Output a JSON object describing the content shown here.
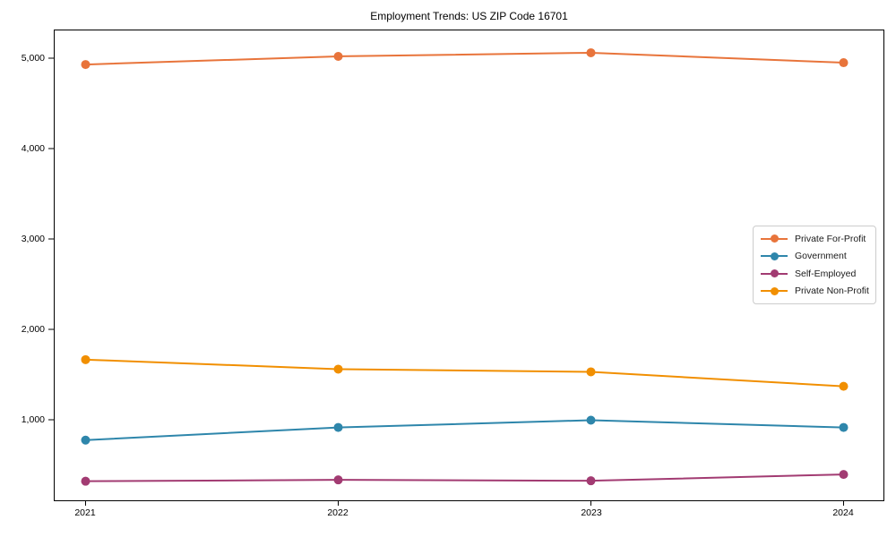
{
  "chart_data": {
    "type": "line",
    "title": "Employment Trends: US ZIP Code 16701",
    "x": [
      2021,
      2022,
      2023,
      2024
    ],
    "xtick_labels": [
      "2021",
      "2022",
      "2023",
      "2024"
    ],
    "yticks": [
      1000,
      2000,
      3000,
      4000,
      5000
    ],
    "ytick_labels": [
      "1,000",
      "2,000",
      "3,000",
      "4,000",
      "5,000"
    ],
    "ylim": [
      85,
      5320
    ],
    "grid": false,
    "legend_position": "center-right",
    "marker": "circle",
    "series": [
      {
        "name": "Private For-Profit",
        "color": "#E8743B",
        "values": [
          4930,
          5020,
          5060,
          4950
        ]
      },
      {
        "name": "Government",
        "color": "#2E86AB",
        "values": [
          775,
          915,
          995,
          915
        ]
      },
      {
        "name": "Self-Employed",
        "color": "#A23B72",
        "values": [
          320,
          335,
          325,
          395
        ]
      },
      {
        "name": "Private Non-Profit",
        "color": "#F18F01",
        "values": [
          1665,
          1560,
          1530,
          1370
        ]
      }
    ]
  }
}
